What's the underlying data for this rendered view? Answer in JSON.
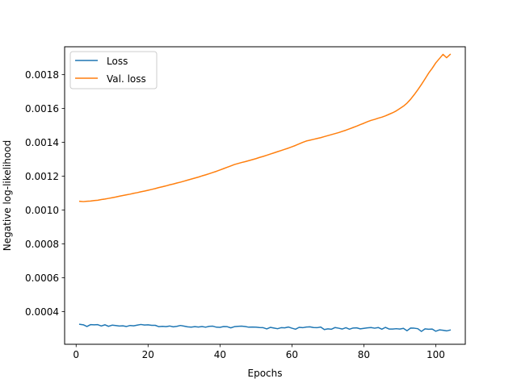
{
  "chart_data": {
    "type": "line",
    "title": "",
    "xlabel": "Epochs",
    "ylabel": "Negative log-likelihood",
    "xlim": [
      -3.2,
      108.2
    ],
    "ylim": [
      0.000207,
      0.001965
    ],
    "xticks": [
      0,
      20,
      40,
      60,
      80,
      100
    ],
    "xtick_labels": [
      "0",
      "20",
      "40",
      "60",
      "80",
      "100"
    ],
    "yticks": [
      0.0004,
      0.0006,
      0.0008,
      0.001,
      0.0012,
      0.0014,
      0.0016,
      0.0018
    ],
    "ytick_labels": [
      "0.0004",
      "0.0006",
      "0.0008",
      "0.0010",
      "0.0012",
      "0.0014",
      "0.0016",
      "0.0018"
    ],
    "grid": false,
    "legend": "top-left",
    "series": [
      {
        "name": "Loss",
        "color": "#1f77b4",
        "x": [
          1,
          2,
          3,
          4,
          5,
          6,
          7,
          8,
          9,
          10,
          11,
          12,
          13,
          14,
          15,
          16,
          17,
          18,
          19,
          20,
          21,
          22,
          23,
          24,
          25,
          26,
          27,
          28,
          29,
          30,
          31,
          32,
          33,
          34,
          35,
          36,
          37,
          38,
          39,
          40,
          41,
          42,
          43,
          44,
          45,
          46,
          47,
          48,
          49,
          50,
          51,
          52,
          53,
          54,
          55,
          56,
          57,
          58,
          59,
          60,
          61,
          62,
          63,
          64,
          65,
          66,
          67,
          68,
          69,
          70,
          71,
          72,
          73,
          74,
          75,
          76,
          77,
          78,
          79,
          80,
          81,
          82,
          83,
          84,
          85,
          86,
          87,
          88,
          89,
          90,
          91,
          92,
          93,
          94,
          95,
          96,
          97,
          98,
          99,
          100,
          101,
          102,
          103,
          104
        ],
        "values": [
          0.000325,
          0.000322,
          0.000312,
          0.000323,
          0.000322,
          0.000323,
          0.000315,
          0.000322,
          0.000313,
          0.00032,
          0.000318,
          0.000315,
          0.000316,
          0.000312,
          0.000318,
          0.000316,
          0.00032,
          0.000324,
          0.000321,
          0.000322,
          0.000319,
          0.000319,
          0.000311,
          0.000313,
          0.000311,
          0.000315,
          0.00031,
          0.000313,
          0.000318,
          0.000314,
          0.00031,
          0.000308,
          0.000311,
          0.000309,
          0.000312,
          0.000308,
          0.000313,
          0.000314,
          0.000308,
          0.000307,
          0.000312,
          0.000311,
          0.000304,
          0.000311,
          0.000313,
          0.000314,
          0.000312,
          0.000308,
          0.000309,
          0.000308,
          0.000306,
          0.000305,
          0.000298,
          0.000307,
          0.000303,
          0.000299,
          0.000305,
          0.000304,
          0.000309,
          0.000302,
          0.000296,
          0.000307,
          0.000305,
          0.000309,
          0.00031,
          0.000306,
          0.000305,
          0.000309,
          0.000294,
          0.000298,
          0.000296,
          0.000306,
          0.000302,
          0.000297,
          0.000305,
          0.000296,
          0.000303,
          0.000304,
          0.000298,
          0.000301,
          0.000304,
          0.000306,
          0.000302,
          0.000306,
          0.000296,
          0.000307,
          0.000297,
          0.000297,
          0.000299,
          0.000297,
          0.000301,
          0.000287,
          0.000303,
          0.000302,
          0.000299,
          0.000283,
          0.000298,
          0.000296,
          0.000297,
          0.000284,
          0.000292,
          0.00029,
          0.000286,
          0.000291
        ]
      },
      {
        "name": "Val. loss",
        "color": "#ff7f0e",
        "x": [
          1,
          2,
          3,
          4,
          5,
          6,
          7,
          8,
          9,
          10,
          11,
          12,
          13,
          14,
          15,
          16,
          17,
          18,
          19,
          20,
          21,
          22,
          23,
          24,
          25,
          26,
          27,
          28,
          29,
          30,
          31,
          32,
          33,
          34,
          35,
          36,
          37,
          38,
          39,
          40,
          41,
          42,
          43,
          44,
          45,
          46,
          47,
          48,
          49,
          50,
          51,
          52,
          53,
          54,
          55,
          56,
          57,
          58,
          59,
          60,
          61,
          62,
          63,
          64,
          65,
          66,
          67,
          68,
          69,
          70,
          71,
          72,
          73,
          74,
          75,
          76,
          77,
          78,
          79,
          80,
          81,
          82,
          83,
          84,
          85,
          86,
          87,
          88,
          89,
          90,
          91,
          92,
          93,
          94,
          95,
          96,
          97,
          98,
          99,
          100,
          101,
          102,
          103,
          104
        ],
        "values": [
          0.001052,
          0.00105,
          0.001052,
          0.001053,
          0.001056,
          0.001058,
          0.001062,
          0.001065,
          0.001069,
          0.001073,
          0.001077,
          0.001082,
          0.001086,
          0.00109,
          0.001094,
          0.001099,
          0.001103,
          0.001108,
          0.001112,
          0.001117,
          0.001122,
          0.001127,
          0.001133,
          0.001138,
          0.001143,
          0.001149,
          0.001154,
          0.00116,
          0.001165,
          0.001171,
          0.001177,
          0.001183,
          0.001189,
          0.001195,
          0.001202,
          0.001208,
          0.001215,
          0.001222,
          0.001229,
          0.001237,
          0.001245,
          0.001253,
          0.001261,
          0.001269,
          0.001275,
          0.001281,
          0.001286,
          0.001292,
          0.001298,
          0.001304,
          0.001311,
          0.001317,
          0.001324,
          0.001331,
          0.001338,
          0.001345,
          0.001352,
          0.001359,
          0.001366,
          0.001374,
          0.001382,
          0.001391,
          0.0014,
          0.001408,
          0.001413,
          0.001418,
          0.001423,
          0.001428,
          0.001434,
          0.00144,
          0.001446,
          0.001452,
          0.001458,
          0.001465,
          0.001472,
          0.00148,
          0.001488,
          0.001496,
          0.001505,
          0.001513,
          0.001522,
          0.00153,
          0.001536,
          0.001543,
          0.001549,
          0.001557,
          0.001566,
          0.001575,
          0.001586,
          0.0016,
          0.001614,
          0.001632,
          0.001655,
          0.001682,
          0.001711,
          0.001742,
          0.001775,
          0.001809,
          0.001838,
          0.00187,
          0.001895,
          0.00192,
          0.0019,
          0.00192
        ]
      }
    ]
  }
}
